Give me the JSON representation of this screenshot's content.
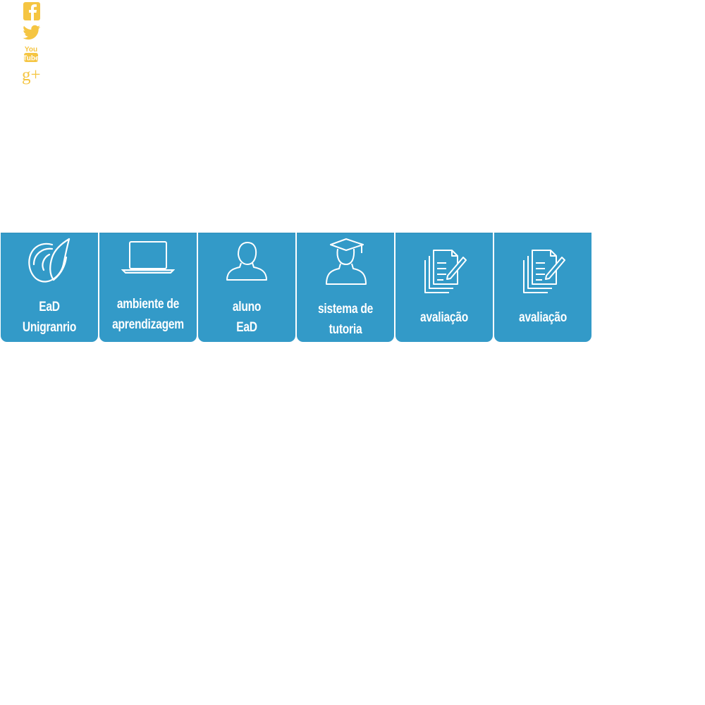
{
  "social": {
    "items": [
      {
        "name": "facebook-icon",
        "color": "#f5c542"
      },
      {
        "name": "twitter-icon",
        "color": "#f5c542"
      },
      {
        "name": "youtube-icon",
        "color": "#f5c542",
        "text_top": "You",
        "text_bottom": "Tube"
      },
      {
        "name": "google-plus-icon",
        "color": "#f5c542",
        "text": "g+"
      }
    ]
  },
  "tiles": {
    "color": "#339ac8",
    "items": [
      {
        "icon": "ead-logo-icon",
        "line1": "EaD",
        "line2": "Unigranrio"
      },
      {
        "icon": "laptop-icon",
        "line1": "ambiente de",
        "line2": "aprendizagem"
      },
      {
        "icon": "student-icon",
        "line1": "aluno",
        "line2": "EaD"
      },
      {
        "icon": "tutor-graduate-icon",
        "line1": "sistema de",
        "line2": "tutoria"
      },
      {
        "icon": "documents-pen-icon",
        "line1": "avaliação"
      },
      {
        "icon": "documents-pen-icon",
        "line1": "avaliação"
      }
    ]
  }
}
